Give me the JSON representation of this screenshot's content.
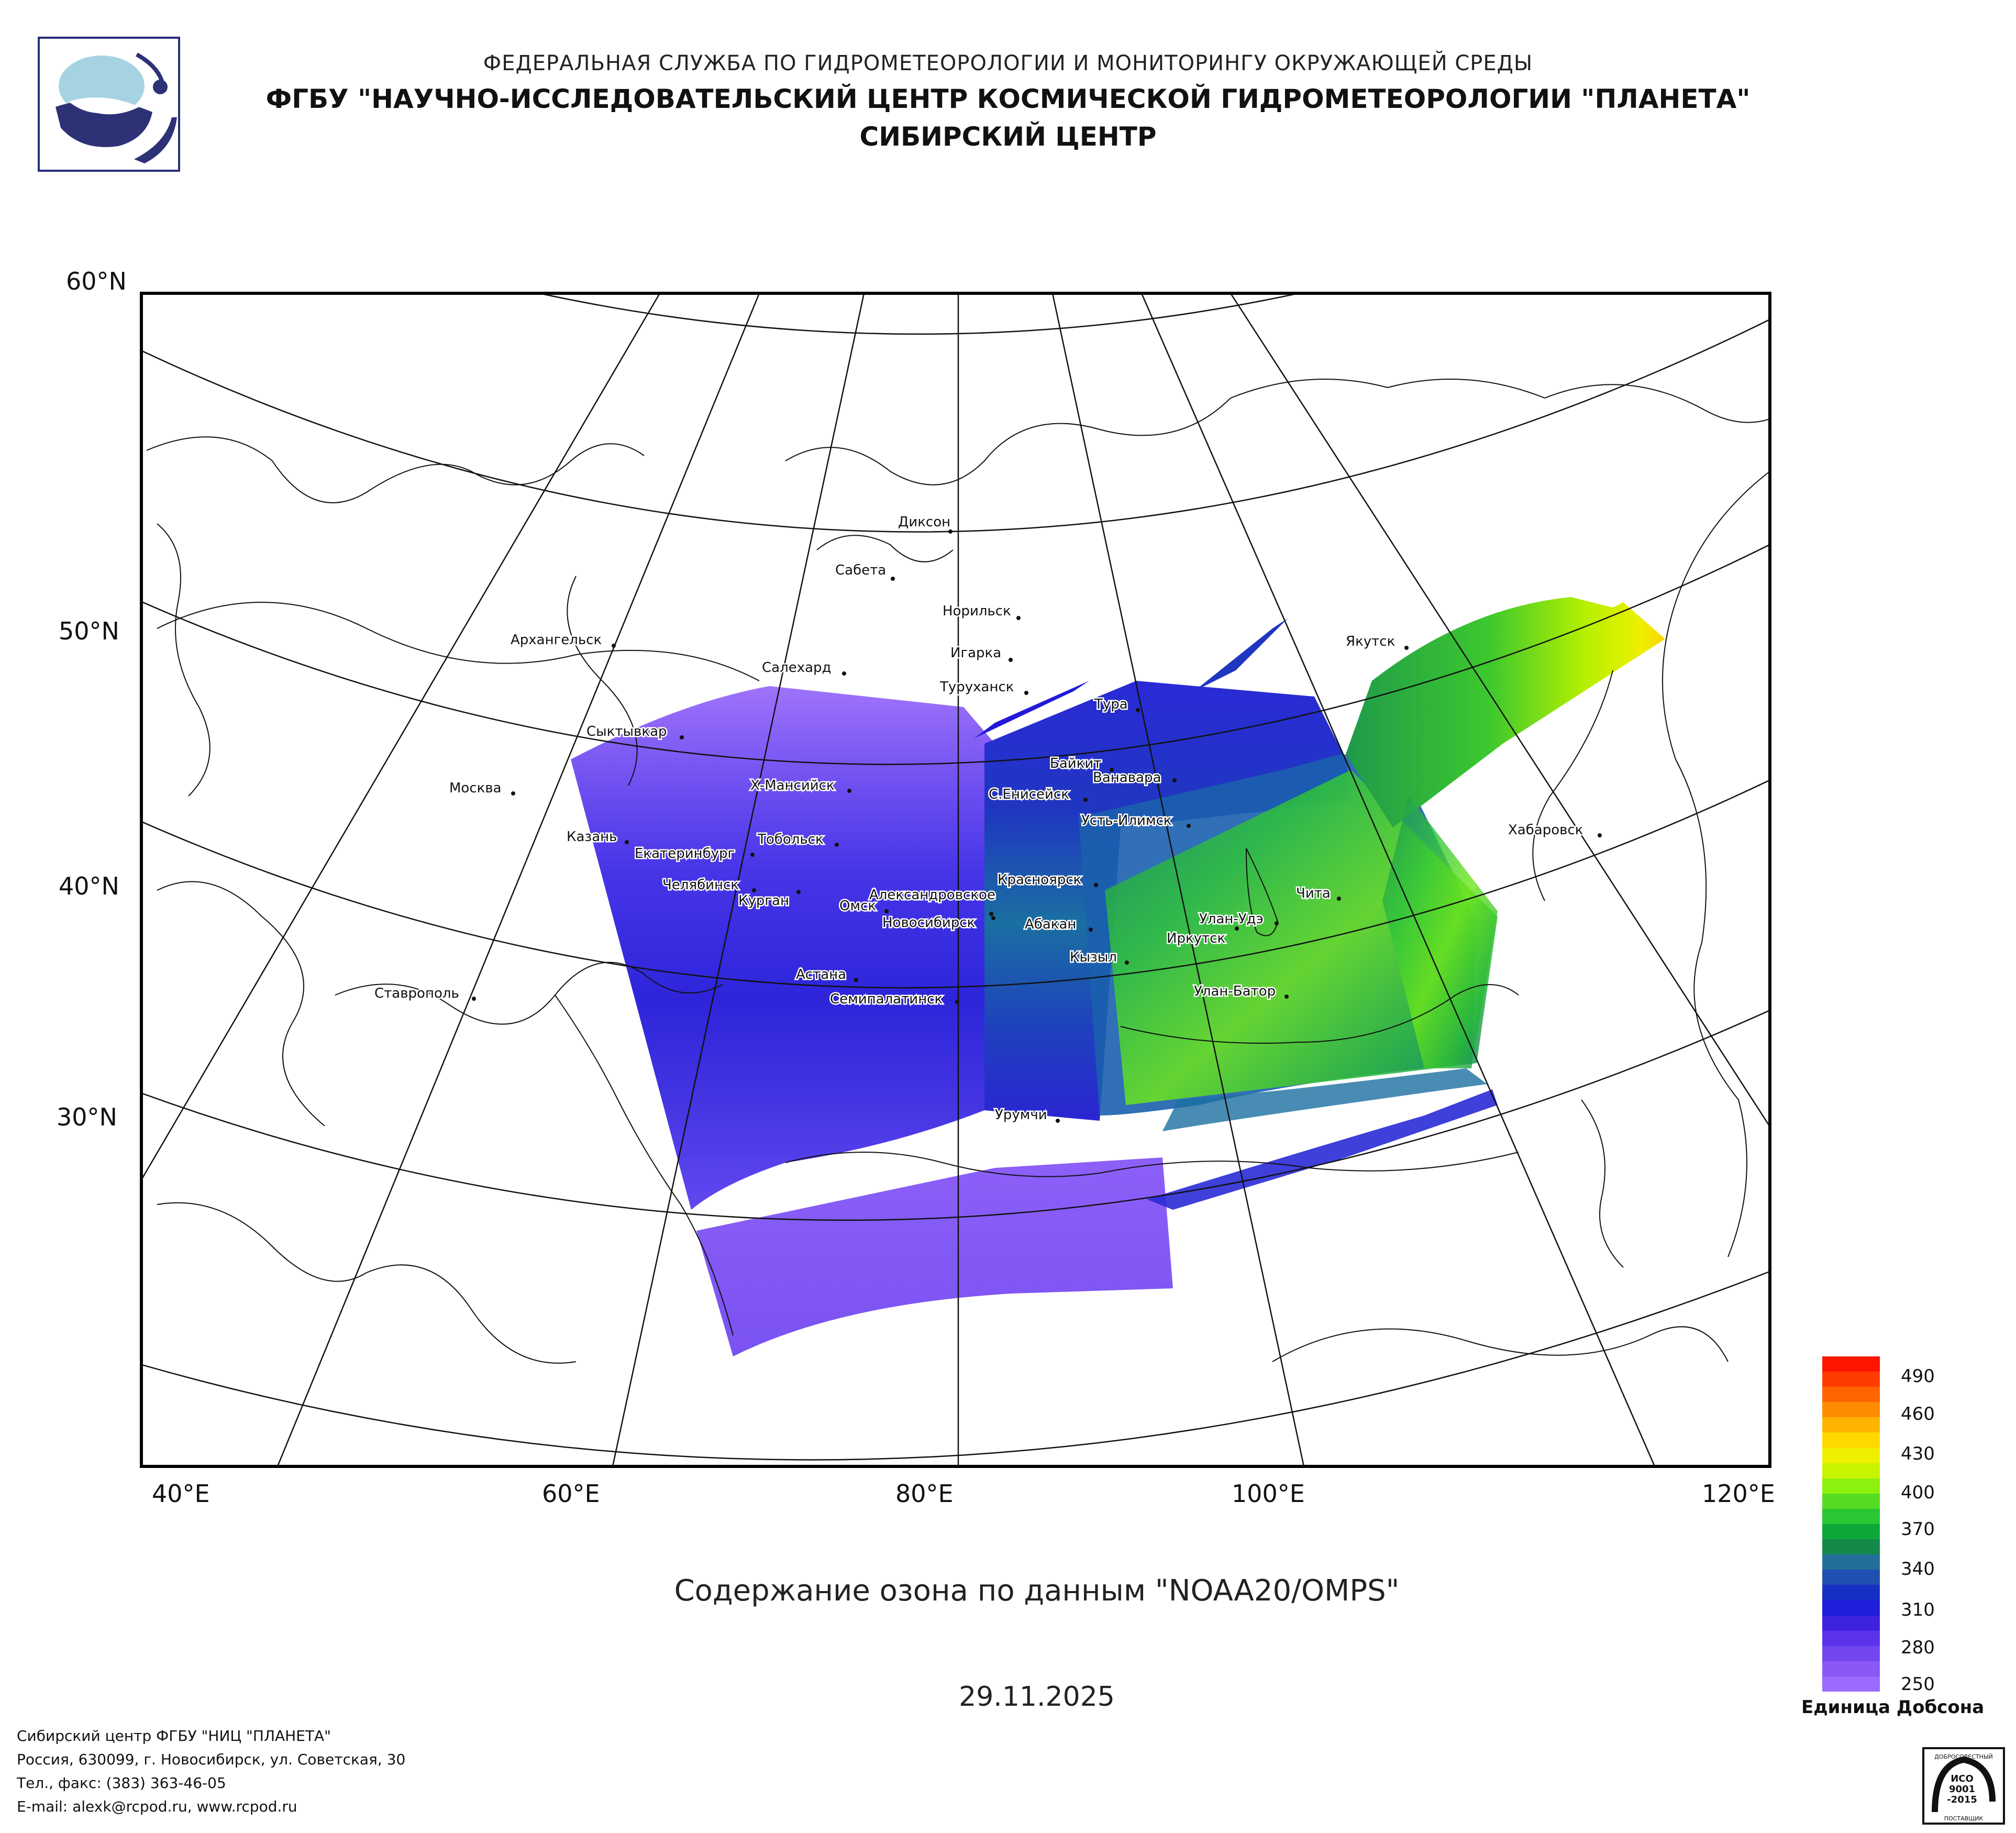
{
  "header": {
    "agency": "ФЕДЕРАЛЬНАЯ СЛУЖБА ПО ГИДРОМЕТЕОРОЛОГИИ И МОНИТОРИНГУ ОКРУЖАЮЩЕЙ СРЕДЫ",
    "institute": "ФГБУ \"НАУЧНО-ИССЛЕДОВАТЕЛЬСКИЙ ЦЕНТР КОСМИЧЕСКОЙ ГИДРОМЕТЕОРОЛОГИИ \"ПЛАНЕТА\"",
    "center": "СИБИРСКИЙ ЦЕНТР"
  },
  "map": {
    "lat_labels": [
      "60°N",
      "50°N",
      "40°N",
      "30°N"
    ],
    "lon_labels": [
      "40°E",
      "60°E",
      "80°E",
      "100°E",
      "120°E"
    ],
    "cities": [
      {
        "name": "Диксон"
      },
      {
        "name": "Сабета"
      },
      {
        "name": "Норильск"
      },
      {
        "name": "Игарка"
      },
      {
        "name": "Архангельск"
      },
      {
        "name": "Салехард"
      },
      {
        "name": "Туруханск"
      },
      {
        "name": "Якутск"
      },
      {
        "name": "Тура"
      },
      {
        "name": "Сыктывкар"
      },
      {
        "name": "Байкит"
      },
      {
        "name": "Ванавара"
      },
      {
        "name": "Москва"
      },
      {
        "name": "Х-Мансийск"
      },
      {
        "name": "С.Енисейск"
      },
      {
        "name": "Усть-Илимск"
      },
      {
        "name": "Хабаровск"
      },
      {
        "name": "Казань"
      },
      {
        "name": "Тобольск"
      },
      {
        "name": "Екатеринбург"
      },
      {
        "name": "Красноярск"
      },
      {
        "name": "Чита"
      },
      {
        "name": "Челябинск"
      },
      {
        "name": "Курган"
      },
      {
        "name": "Александровское"
      },
      {
        "name": "Омск"
      },
      {
        "name": "Новосибирск"
      },
      {
        "name": "Улан-Удэ"
      },
      {
        "name": "Абакан"
      },
      {
        "name": "Иркутск"
      },
      {
        "name": "Кызыл"
      },
      {
        "name": "Астана"
      },
      {
        "name": "Семипалатинск"
      },
      {
        "name": "Улан-Батор"
      },
      {
        "name": "Ставрополь"
      },
      {
        "name": "Урумчи"
      }
    ]
  },
  "chart_title": "Содержание озона по данным \"NOAA20/OMPS\"",
  "date": "29.11.2025",
  "colorbar": {
    "ticks": [
      "490",
      "460",
      "430",
      "400",
      "370",
      "340",
      "310",
      "280",
      "250"
    ],
    "unit": "Единица Добсона",
    "colors": [
      "#9b6bff",
      "#8a58f6",
      "#7446f0",
      "#5c33ea",
      "#3d22e0",
      "#1f1ed8",
      "#1630c4",
      "#1f4fb0",
      "#22709a",
      "#14894a",
      "#0ea83a",
      "#2ac634",
      "#55dc22",
      "#8ef00e",
      "#c8f400",
      "#eef000",
      "#ffd800",
      "#ffb400",
      "#ff8c00",
      "#ff6400",
      "#ff3c00",
      "#ff1400"
    ]
  },
  "footer": {
    "line1": "Сибирский центр ФГБУ \"НИЦ \"ПЛАНЕТА\"",
    "line2": "Россия, 630099, г. Новосибирск, ул. Советская, 30",
    "line3": "Тел., факс: (383) 363-46-05",
    "line4": "E-mail: alexk@rcpod.ru, www.rcpod.ru"
  },
  "certification_stamp": {
    "lines": [
      "ДОБРОСОВЕСТНЫЙ",
      "ИСО",
      "9001",
      "-2015",
      "ПОСТАВЩИК"
    ]
  }
}
